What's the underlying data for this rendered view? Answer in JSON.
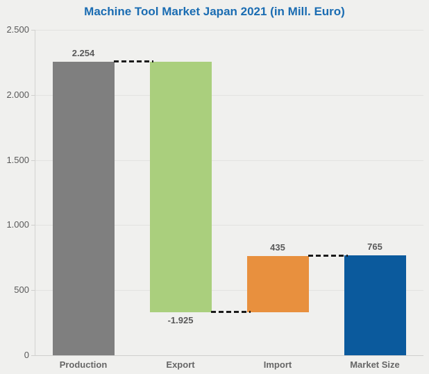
{
  "title": "Machine Tool Market Japan 2021 (in Mill. Euro)",
  "colors": {
    "background": "#f0f0ee",
    "title": "#1a6cb2",
    "gridline": "#e2e2e0",
    "axis": "#cfcfcd",
    "value_label": "#595959",
    "category_label": "#666666",
    "connector": "#1a1a1a",
    "bar_production": "#7f7f7f",
    "bar_export": "#aacf7d",
    "bar_import": "#e8903e",
    "bar_market_size": "#0b5a9d"
  },
  "chart_data": {
    "type": "bar",
    "subtype": "waterfall",
    "title": "Machine Tool Market Japan 2021 (in Mill. Euro)",
    "xlabel": "",
    "ylabel": "",
    "ylim": [
      0,
      2500
    ],
    "grid": true,
    "legend": false,
    "categories": [
      "Production",
      "Export",
      "Import",
      "Market Size"
    ],
    "bars": [
      {
        "category": "Production",
        "label": "2.254",
        "value": 2254,
        "start": 0,
        "end": 2254,
        "color": "#7f7f7f",
        "label_position": "above"
      },
      {
        "category": "Export",
        "label": "-1.925",
        "value": -1925,
        "start": 2254,
        "end": 329,
        "color": "#aacf7d",
        "label_position": "below"
      },
      {
        "category": "Import",
        "label": "435",
        "value": 435,
        "start": 329,
        "end": 764,
        "color": "#e8903e",
        "label_position": "above"
      },
      {
        "category": "Market Size",
        "label": "765",
        "value": 765,
        "start": 0,
        "end": 765,
        "color": "#0b5a9d",
        "label_position": "above"
      }
    ],
    "connectors": [
      {
        "from": 0,
        "to": 1,
        "level": 2254
      },
      {
        "from": 1,
        "to": 2,
        "level": 329
      },
      {
        "from": 2,
        "to": 3,
        "level": 764
      }
    ],
    "yticks": [
      {
        "label": "2.500",
        "value": 2500
      },
      {
        "label": "2.000",
        "value": 2000
      },
      {
        "label": "1.500",
        "value": 1500
      },
      {
        "label": "1.000",
        "value": 1000
      },
      {
        "label": "500",
        "value": 500
      },
      {
        "label": "0",
        "value": 0
      }
    ]
  }
}
